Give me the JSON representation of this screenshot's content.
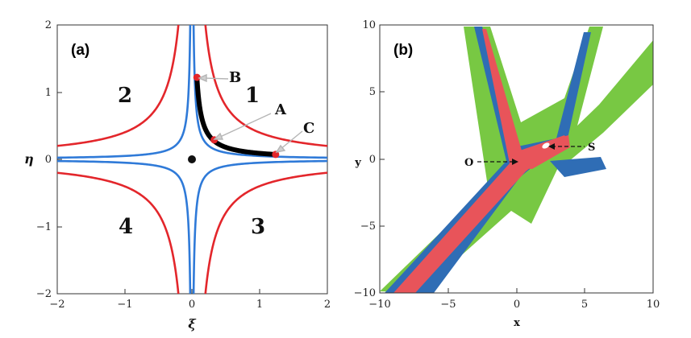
{
  "panel_a": {
    "label": "(a)",
    "x_axis_title": "ξ",
    "y_axis_title": "η",
    "x_ticks": [
      "−2",
      "−1",
      "0",
      "1",
      "2"
    ],
    "y_ticks": [
      "−2",
      "−1",
      "0",
      "1",
      "2"
    ],
    "regions": [
      "1",
      "2",
      "3",
      "4"
    ],
    "points": [
      "A",
      "B",
      "C"
    ],
    "colors": {
      "red_curve": "#e3262b",
      "blue_curve": "#2f7ad8",
      "path": "#000000",
      "point": "#e3262b"
    }
  },
  "panel_b": {
    "label": "(b)",
    "x_axis_title": "x",
    "y_axis_title": "y",
    "x_ticks": [
      "−10",
      "−5",
      "0",
      "5",
      "10"
    ],
    "y_ticks": [
      "10",
      "5",
      "0",
      "−5",
      "−10"
    ],
    "markers": [
      "O",
      "S"
    ],
    "colors": {
      "outer": "#78c843",
      "middle": "#2f6db5",
      "inner": "#e8545a"
    }
  }
}
